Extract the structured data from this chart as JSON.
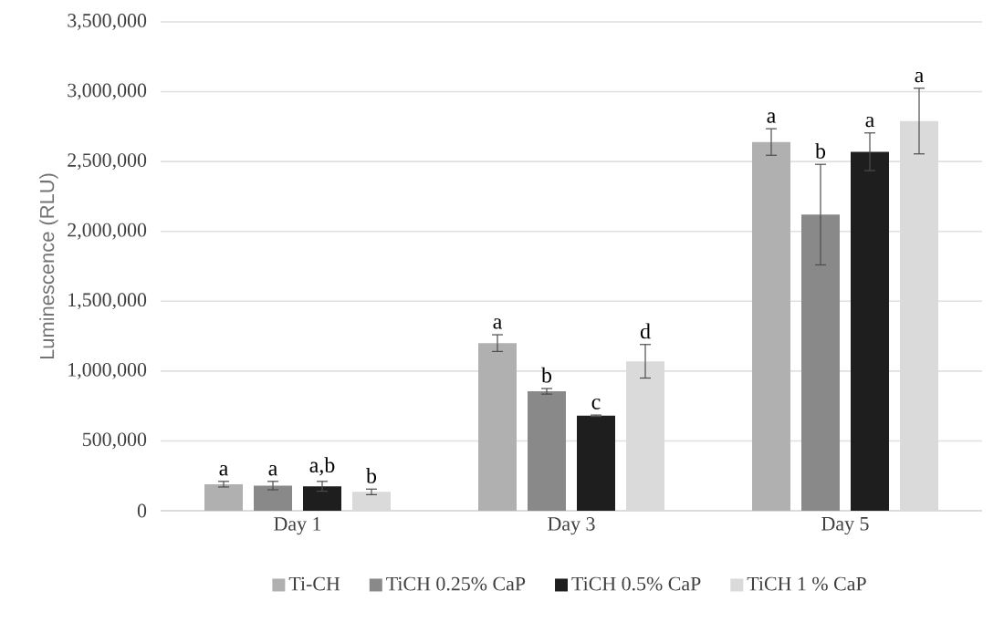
{
  "chart_data": {
    "type": "bar",
    "ylabel": "Luminescence (RLU)",
    "categories": [
      "Day 1",
      "Day 3",
      "Day 5"
    ],
    "series": [
      {
        "name": "Ti-CH",
        "color": "#b0b0b0",
        "values": [
          190000,
          1200000,
          2640000
        ],
        "errors": [
          20000,
          60000,
          95000
        ],
        "value_labels": [
          "a",
          "a",
          "a"
        ]
      },
      {
        "name": "TiCH 0.25% CaP",
        "color": "#898989",
        "values": [
          180000,
          855000,
          2120000
        ],
        "errors": [
          30000,
          20000,
          360000
        ],
        "value_labels": [
          "a",
          "b",
          "b"
        ]
      },
      {
        "name": "TiCH 0.5% CaP",
        "color": "#1e1e1e",
        "values": [
          175000,
          680000,
          2570000
        ],
        "errors": [
          35000,
          5000,
          135000
        ],
        "value_labels": [
          "a,b",
          "c",
          "a"
        ]
      },
      {
        "name": "TiCH 1 % CaP",
        "color": "#dadada",
        "values": [
          135000,
          1070000,
          2790000
        ],
        "errors": [
          20000,
          120000,
          235000
        ],
        "value_labels": [
          "b",
          "d",
          "a"
        ]
      }
    ],
    "ylim": [
      0,
      3500000
    ],
    "yticks": [
      {
        "value": 0,
        "label": "0"
      },
      {
        "value": 500000,
        "label": "500,000"
      },
      {
        "value": 1000000,
        "label": "1,000,000"
      },
      {
        "value": 1500000,
        "label": "1,500,000"
      },
      {
        "value": 2000000,
        "label": "2,000,000"
      },
      {
        "value": 2500000,
        "label": "2,500,000"
      },
      {
        "value": 3000000,
        "label": "3,000,000"
      },
      {
        "value": 3500000,
        "label": "3,500,000"
      }
    ],
    "grid": "y",
    "legend": "bottom"
  }
}
